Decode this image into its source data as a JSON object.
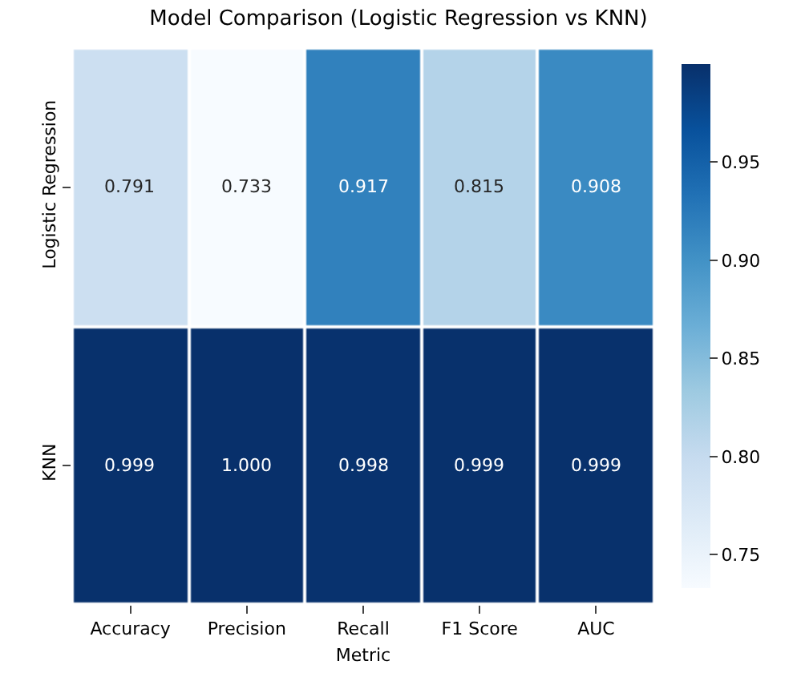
{
  "chart_data": {
    "type": "heatmap",
    "title": "Model Comparison (Logistic Regression vs KNN)",
    "xlabel": "Metric",
    "categories": [
      "Accuracy",
      "Precision",
      "Recall",
      "F1 Score",
      "AUC"
    ],
    "y_categories": [
      "Logistic Regression",
      "KNN"
    ],
    "cells": [
      [
        0.791,
        0.733,
        0.917,
        0.815,
        0.908
      ],
      [
        0.999,
        1.0,
        0.998,
        0.999,
        0.999
      ]
    ],
    "cell_labels": [
      [
        "0.791",
        "0.733",
        "0.917",
        "0.815",
        "0.908"
      ],
      [
        "0.999",
        "1.000",
        "0.998",
        "0.999",
        "0.999"
      ]
    ],
    "clim": [
      0.733,
      1.0
    ],
    "cticks": [
      0.75,
      {
        "value": 0.8,
        "label": "0.80"
      },
      0.85,
      {
        "value": 0.9,
        "label": "0.90"
      },
      0.95
    ]
  }
}
